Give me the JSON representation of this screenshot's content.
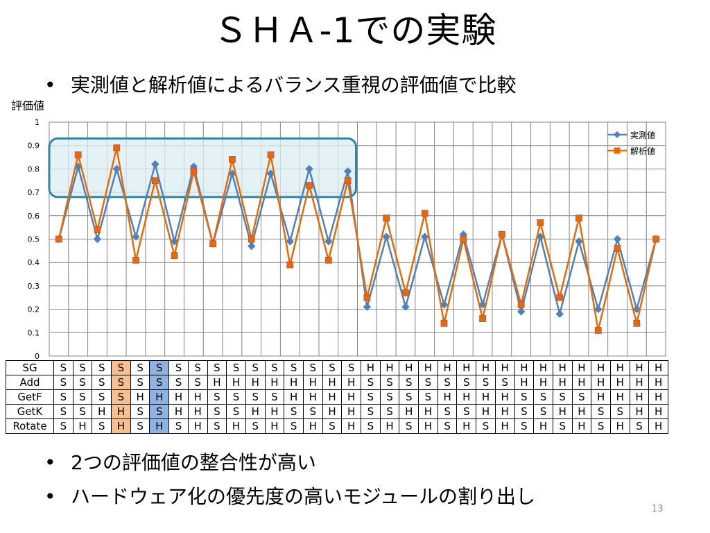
{
  "slide": {
    "title": "ＳＨＡ-1での実験",
    "bullet1": "実測値と解析値によるバランス重視の評価値で比較",
    "bullet2": "2つの評価値の整合性が高い",
    "bullet3": "ハードウェア化の優先度の高いモジュールの割り出し",
    "bullet_symbol": "•",
    "page_number": "13"
  },
  "chart_data": {
    "type": "line",
    "ylabel": "評価値",
    "ylim": [
      0,
      1
    ],
    "yticks": [
      "0",
      "0.1",
      "0.2",
      "0.3",
      "0.4",
      "0.5",
      "0.6",
      "0.7",
      "0.8",
      "0.9",
      "1"
    ],
    "grid": true,
    "legend_position": "top-right",
    "highlight_box": {
      "from_index": 0,
      "to_index": 15,
      "y_range": [
        0.68,
        0.93
      ],
      "color": "#31859c"
    },
    "series": [
      {
        "name": "実測値",
        "color": "#4f81bd",
        "marker": "diamond",
        "values": [
          0.5,
          0.81,
          0.5,
          0.8,
          0.51,
          0.82,
          0.49,
          0.81,
          0.48,
          0.78,
          0.47,
          0.78,
          0.49,
          0.8,
          0.49,
          0.79,
          0.21,
          0.51,
          0.21,
          0.51,
          0.22,
          0.52,
          0.22,
          0.52,
          0.19,
          0.51,
          0.18,
          0.49,
          0.2,
          0.5,
          0.2,
          0.5
        ]
      },
      {
        "name": "解析値",
        "color": "#e36c09",
        "marker": "square",
        "values": [
          0.5,
          0.86,
          0.54,
          0.89,
          0.41,
          0.75,
          0.43,
          0.79,
          0.48,
          0.84,
          0.5,
          0.86,
          0.39,
          0.73,
          0.41,
          0.75,
          0.25,
          0.59,
          0.27,
          0.61,
          0.14,
          0.5,
          0.16,
          0.52,
          0.22,
          0.57,
          0.25,
          0.59,
          0.11,
          0.46,
          0.14,
          0.5
        ]
      }
    ]
  },
  "config_table": {
    "highlight_orange_col": 3,
    "highlight_blue_col": 5,
    "rows": [
      {
        "label": "SG",
        "cells": [
          "S",
          "S",
          "S",
          "S",
          "S",
          "S",
          "S",
          "S",
          "S",
          "S",
          "S",
          "S",
          "S",
          "S",
          "S",
          "S",
          "H",
          "H",
          "H",
          "H",
          "H",
          "H",
          "H",
          "H",
          "H",
          "H",
          "H",
          "H",
          "H",
          "H",
          "H",
          "H"
        ]
      },
      {
        "label": "Add",
        "cells": [
          "S",
          "S",
          "S",
          "S",
          "S",
          "S",
          "S",
          "S",
          "H",
          "H",
          "H",
          "H",
          "H",
          "H",
          "H",
          "H",
          "S",
          "S",
          "S",
          "S",
          "S",
          "S",
          "S",
          "S",
          "H",
          "H",
          "H",
          "H",
          "H",
          "H",
          "H",
          "H"
        ]
      },
      {
        "label": "GetF",
        "cells": [
          "S",
          "S",
          "S",
          "S",
          "H",
          "H",
          "H",
          "H",
          "S",
          "S",
          "S",
          "S",
          "H",
          "H",
          "H",
          "H",
          "S",
          "S",
          "S",
          "S",
          "H",
          "H",
          "H",
          "H",
          "S",
          "S",
          "S",
          "S",
          "H",
          "H",
          "H",
          "H"
        ]
      },
      {
        "label": "GetK",
        "cells": [
          "S",
          "S",
          "H",
          "H",
          "S",
          "S",
          "H",
          "H",
          "S",
          "S",
          "H",
          "H",
          "S",
          "S",
          "H",
          "H",
          "S",
          "S",
          "H",
          "H",
          "S",
          "S",
          "H",
          "H",
          "S",
          "S",
          "H",
          "H",
          "S",
          "S",
          "H",
          "H"
        ]
      },
      {
        "label": "Rotate",
        "cells": [
          "S",
          "H",
          "S",
          "H",
          "S",
          "H",
          "S",
          "H",
          "S",
          "H",
          "S",
          "H",
          "S",
          "H",
          "S",
          "H",
          "S",
          "H",
          "S",
          "H",
          "S",
          "H",
          "S",
          "H",
          "S",
          "H",
          "S",
          "H",
          "S",
          "H",
          "S",
          "H"
        ]
      }
    ]
  }
}
